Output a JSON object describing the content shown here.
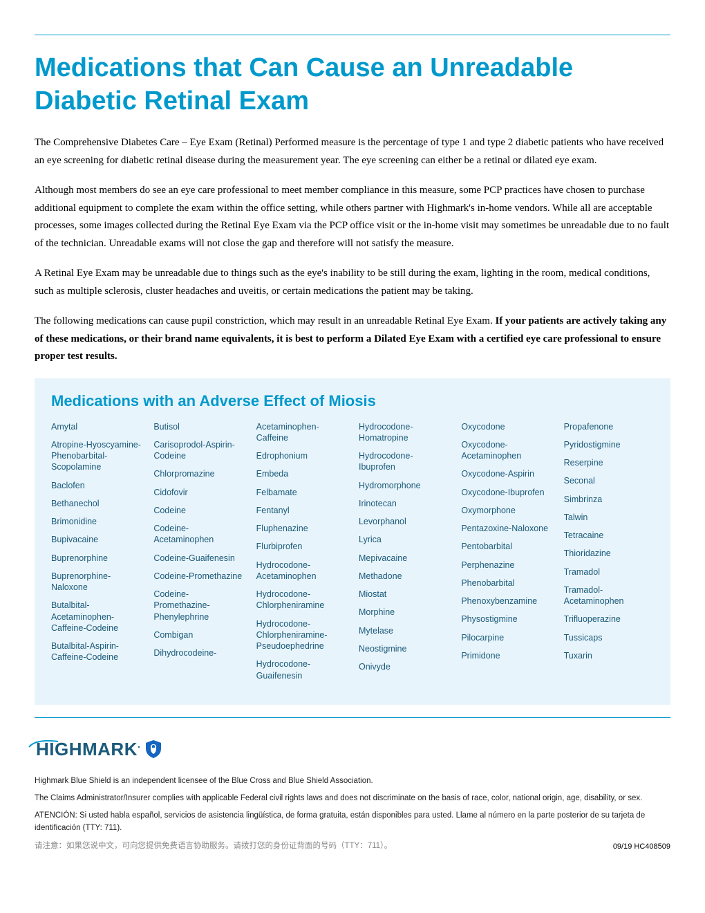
{
  "colors": {
    "accent": "#0099cc",
    "box_bg": "#e8f4fb",
    "med_text": "#1a5a7a",
    "logo_text": "#1a5a7a"
  },
  "title": "Medications that Can Cause an Unreadable Diabetic Retinal Exam",
  "paragraphs": [
    "The Comprehensive Diabetes Care – Eye Exam (Retinal) Performed measure is the percentage of type 1 and type 2 diabetic patients who have received an eye screening for diabetic retinal disease during the measurement year. The eye screening can either be a retinal or dilated eye exam.",
    "Although most members do see an eye care professional to meet member compliance in this measure, some PCP practices have chosen to purchase additional equipment to complete the exam within the office setting, while others partner with Highmark's in-home vendors. While all are acceptable processes, some images collected during the Retinal Eye Exam via the PCP office visit or the in-home visit may sometimes be unreadable due to no fault of the technician. Unreadable exams will not close the gap and therefore will not satisfy the measure.",
    "A Retinal Eye Exam may be unreadable due to things such as the eye's inability to be still during the exam, lighting in the room, medical conditions, such as multiple sclerosis, cluster headaches and uveitis, or certain medications the patient may be taking."
  ],
  "para4_plain": "The following medications can cause pupil constriction, which may result in an unreadable Retinal Eye Exam. ",
  "para4_bold": "If your patients are actively taking any of these medications, or their brand name equivalents, it is best to perform a Dilated Eye Exam with a certified eye care professional to ensure proper test results.",
  "meds_heading": "Medications with an Adverse Effect of Miosis",
  "meds_columns": [
    [
      "Amytal",
      "Atropine-Hyoscyamine-Phenobarbital-Scopolamine",
      "Baclofen",
      "Bethanechol",
      "Brimonidine",
      "Bupivacaine",
      "Buprenorphine",
      "Buprenorphine-Naloxone",
      "Butalbital-Acetaminophen-Caffeine-Codeine",
      "Butalbital-Aspirin-Caffeine-Codeine"
    ],
    [
      "Butisol",
      "Carisoprodol-Aspirin-Codeine",
      "Chlorpromazine",
      "Cidofovir",
      "Codeine",
      "Codeine-Acetaminophen",
      "Codeine-Guaifenesin",
      "Codeine-Promethazine",
      "Codeine-Promethazine-Phenylephrine",
      "Combigan",
      "Dihydrocodeine-"
    ],
    [
      "Acetaminophen-Caffeine",
      "Edrophonium",
      "Embeda",
      "Felbamate",
      "Fentanyl",
      "Fluphenazine",
      "Flurbiprofen",
      " Hydrocodone-Acetaminophen",
      " Hydrocodone-Chlorpheniramine",
      "Hydrocodone-Chlorpheniramine-Pseudoephedrine",
      " Hydrocodone-Guaifenesin"
    ],
    [
      "Hydrocodone-Homatropine",
      "Hydrocodone-Ibuprofen",
      "Hydromorphone",
      "Irinotecan",
      "Levorphanol",
      "Lyrica",
      "Mepivacaine",
      "Methadone",
      "Miostat",
      "Morphine",
      "Mytelase",
      "Neostigmine",
      "Onivyde"
    ],
    [
      "Oxycodone",
      "Oxycodone-Acetaminophen",
      "Oxycodone-Aspirin",
      "Oxycodone-Ibuprofen",
      "Oxymorphone",
      "Pentazoxine-Naloxone",
      "Pentobarbital",
      "Perphenazine",
      "Phenobarbital",
      "Phenoxybenzamine",
      "Physostigmine",
      "Pilocarpine",
      "Primidone"
    ],
    [
      "Propafenone",
      "Pyridostigmine",
      "Reserpine",
      "Seconal",
      "Simbrinza",
      "Talwin",
      "Tetracaine",
      "Thioridazine",
      "Tramadol",
      "Tramadol-Acetaminophen",
      "Trifluoperazine",
      "Tussicaps",
      "Tuxarin"
    ]
  ],
  "logo_text": "HIGHMARK",
  "footnotes": [
    "Highmark Blue Shield is an independent licensee of the Blue Cross and Blue Shield Association.",
    "The Claims Administrator/Insurer complies with applicable Federal civil rights laws and does not discriminate on the basis of race, color, national origin, age, disability, or sex.",
    "ATENCIÓN: Si usted habla español, servicios de asistencia lingüística, de forma gratuita, están disponibles para usted. Llame al número en la parte posterior de su tarjeta de identificación (TTY: 711)."
  ],
  "footnote_cn": "请注意：如果您说中文，可向您提供免费语言协助服务。请拨打您的身份证背面的号码（TTY：711）。",
  "doc_code": "09/19   HC408509"
}
